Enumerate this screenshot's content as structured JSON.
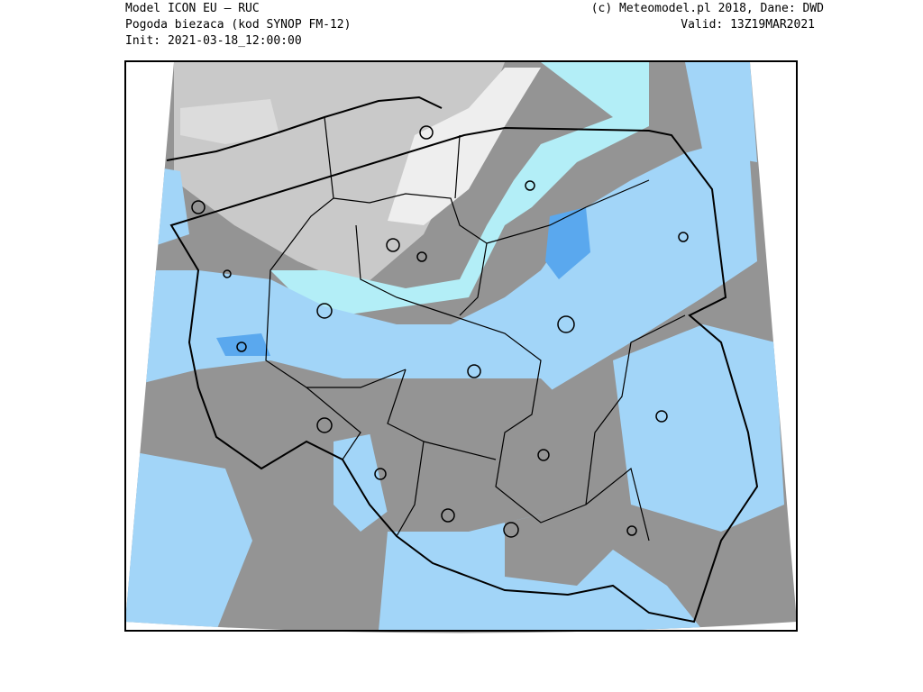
{
  "header": {
    "model": "Model ICON EU – RUC",
    "product": "Pogoda biezaca (kod SYNOP FM-12)",
    "init": "Init: 2021-03-18_12:00:00",
    "copyright": "(c) Meteomodel.pl 2018, Dane: DWD",
    "valid": "Valid: 13Z19MAR2021"
  }
}
